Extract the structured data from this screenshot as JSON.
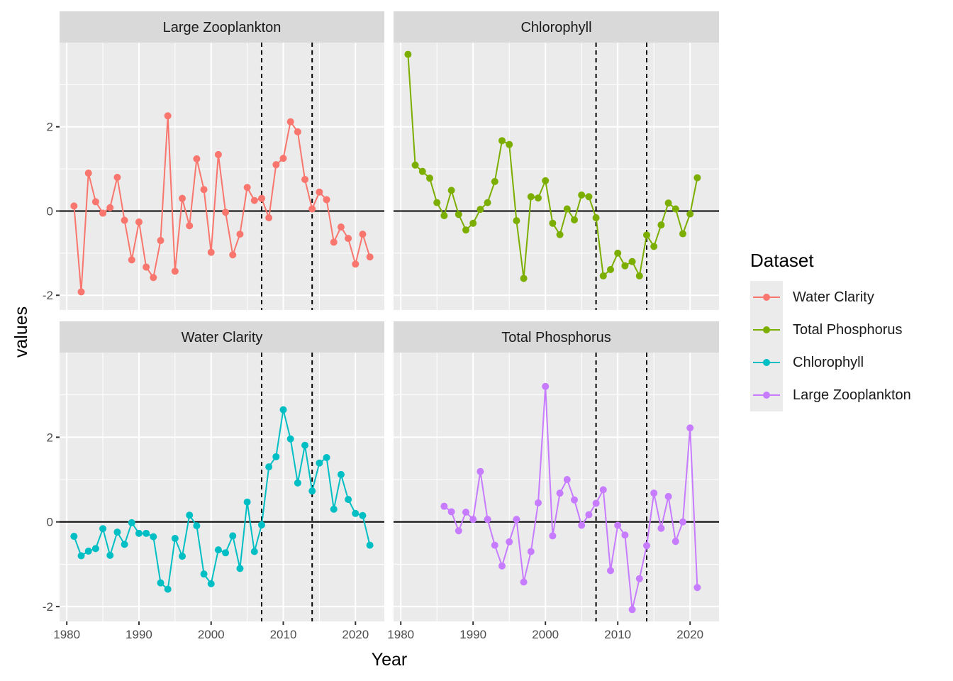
{
  "chart_data": {
    "type": "line",
    "xlabel": "Year",
    "ylabel": "values",
    "xlim": [
      1979,
      2024
    ],
    "ylim": [
      -2.35,
      4.0
    ],
    "x_ticks": [
      1980,
      1990,
      2000,
      2010,
      2020
    ],
    "y_ticks": [
      -2,
      0,
      2
    ],
    "reference_lines": {
      "horizontal": [
        0
      ],
      "vertical_dashed": [
        2007,
        2014
      ]
    },
    "grid": true,
    "legend": {
      "title": "Dataset",
      "position": "right",
      "entries": [
        {
          "name": "Water Clarity",
          "color": "#F8766D"
        },
        {
          "name": "Total Phosphorus",
          "color": "#7CAE00"
        },
        {
          "name": "Chlorophyll",
          "color": "#00BFC4"
        },
        {
          "name": "Large Zooplankton",
          "color": "#C77CFF"
        }
      ]
    },
    "panels": [
      {
        "title": "Large Zooplankton",
        "series_name": "Water Clarity",
        "color": "#F8766D",
        "x_start": 1981,
        "values": [
          0.12,
          -1.92,
          0.9,
          0.22,
          -0.05,
          0.08,
          0.8,
          -0.22,
          -1.16,
          -0.26,
          -1.33,
          -1.58,
          -0.7,
          2.26,
          -1.43,
          0.3,
          -0.35,
          1.24,
          0.51,
          -0.98,
          1.34,
          -0.03,
          -1.04,
          -0.55,
          0.56,
          0.25,
          0.3,
          -0.16,
          1.1,
          1.25,
          2.12,
          1.88,
          0.75,
          0.05,
          0.45,
          0.27,
          -0.74,
          -0.38,
          -0.65,
          -1.26,
          -0.55,
          -1.09
        ]
      },
      {
        "title": "Chlorophyll",
        "series_name": "Total Phosphorus",
        "color": "#7CAE00",
        "x_start": 1981,
        "values": [
          3.72,
          1.09,
          0.94,
          0.78,
          0.2,
          -0.11,
          0.49,
          -0.08,
          -0.45,
          -0.29,
          0.04,
          0.2,
          0.7,
          1.67,
          1.58,
          -0.23,
          -1.6,
          0.34,
          0.31,
          0.72,
          -0.29,
          -0.56,
          0.05,
          -0.21,
          0.38,
          0.34,
          -0.16,
          -1.54,
          -1.39,
          -1.0,
          -1.3,
          -1.2,
          -1.54,
          -0.57,
          -0.84,
          -0.33,
          0.19,
          0.05,
          -0.54,
          -0.07,
          0.79
        ]
      },
      {
        "title": "Water Clarity",
        "series_name": "Chlorophyll",
        "color": "#00BFC4",
        "x_start": 1981,
        "values": [
          -0.34,
          -0.8,
          -0.69,
          -0.63,
          -0.16,
          -0.79,
          -0.24,
          -0.53,
          -0.02,
          -0.27,
          -0.27,
          -0.35,
          -1.44,
          -1.59,
          -0.39,
          -0.81,
          0.16,
          -0.09,
          -1.23,
          -1.46,
          -0.66,
          -0.73,
          -0.33,
          -1.1,
          0.47,
          -0.7,
          -0.07,
          1.3,
          1.54,
          2.65,
          1.96,
          0.92,
          1.81,
          0.73,
          1.39,
          1.52,
          0.3,
          1.12,
          0.53,
          0.2,
          0.15,
          -0.55
        ]
      },
      {
        "title": "Total Phosphorus",
        "series_name": "Large Zooplankton",
        "color": "#C77CFF",
        "x_start": 1986,
        "values": [
          0.37,
          0.24,
          -0.21,
          0.23,
          0.06,
          1.19,
          0.06,
          -0.55,
          -1.04,
          -0.47,
          0.06,
          -1.42,
          -0.7,
          0.45,
          3.2,
          -0.33,
          0.68,
          1.0,
          0.52,
          -0.08,
          0.17,
          0.44,
          0.76,
          -1.15,
          -0.08,
          -0.31,
          -2.07,
          -1.34,
          -0.56,
          0.68,
          -0.15,
          0.6,
          -0.46,
          0.0,
          2.22,
          -1.55
        ]
      }
    ]
  }
}
